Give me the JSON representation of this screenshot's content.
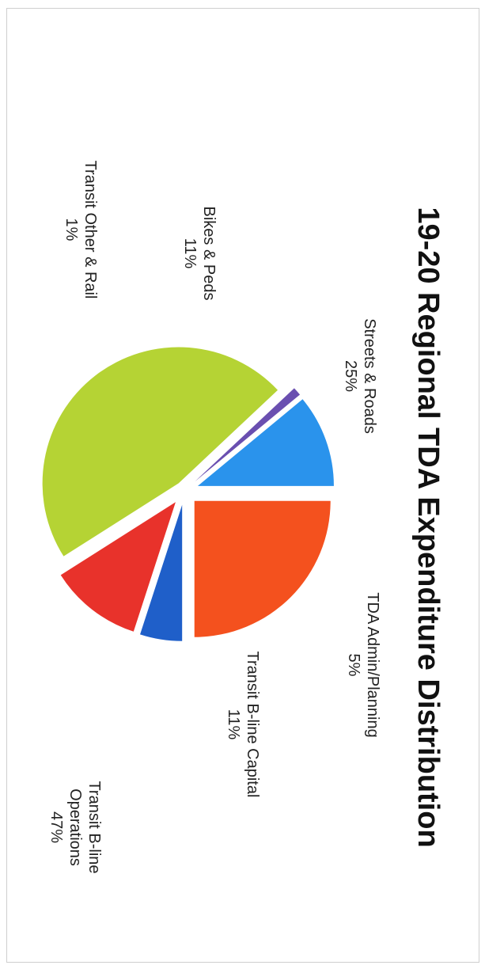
{
  "chart_data": {
    "type": "pie",
    "title": "19-20 Regional TDA Expenditure Distribution",
    "slices": [
      {
        "label": "Streets & Roads",
        "value": 25,
        "value_label": "25%",
        "color": "#f4511e"
      },
      {
        "label": "TDA Admin/Planning",
        "value": 5,
        "value_label": "5%",
        "color": "#1f5fc9"
      },
      {
        "label": "Transit B-line Capital",
        "value": 11,
        "value_label": "11%",
        "color": "#e8322b"
      },
      {
        "label": "Transit B-line Operations",
        "value": 47,
        "value_label": "47%",
        "color": "#b5d334"
      },
      {
        "label": "Transit Other & Rail",
        "value": 1,
        "value_label": "1%",
        "color": "#6a4fb0"
      },
      {
        "label": "Bikes & Peds",
        "value": 11,
        "value_label": "11%",
        "color": "#2a93ec"
      }
    ],
    "legend": "none",
    "orientation": "rotated-90-clockwise"
  }
}
